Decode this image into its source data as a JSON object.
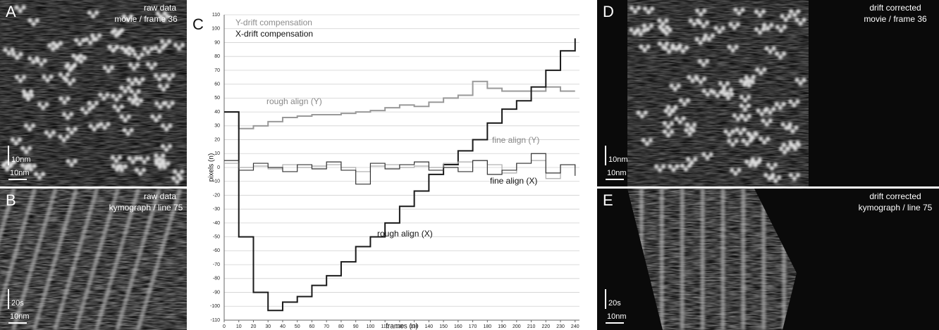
{
  "panels": [
    {
      "label": "A",
      "caption": [
        "raw data",
        "movie / frame 36"
      ],
      "scale_bars": [
        "10nm",
        "10nm"
      ]
    },
    {
      "label": "B",
      "caption": [
        "raw data",
        "kymograph / line 75"
      ],
      "scale_bars": [
        "20s",
        "10nm"
      ]
    },
    {
      "label": "D",
      "caption": [
        "drift corrected",
        "movie / frame 36"
      ],
      "scale_bars": [
        "10nm",
        "10nm"
      ]
    },
    {
      "label": "E",
      "caption": [
        "drift corrected",
        "kymograph / line 75"
      ],
      "scale_bars": [
        "20s",
        "10nm"
      ]
    }
  ],
  "chart_data": {
    "type": "line",
    "panel_label": "C",
    "legend": [
      {
        "label": "Y-drift compensation",
        "color": "#8c8c8c"
      },
      {
        "label": "X-drift compensation",
        "color": "#111111"
      }
    ],
    "x_label": "frames (n)",
    "y_label": "pixels (n)",
    "x": [
      0,
      10,
      20,
      30,
      40,
      50,
      60,
      70,
      80,
      90,
      100,
      110,
      120,
      130,
      140,
      150,
      160,
      170,
      180,
      190,
      200,
      210,
      220,
      230,
      240
    ],
    "series": [
      {
        "name": "rough align (Y)",
        "color": "#999999",
        "values": [
          40,
          28,
          30,
          33,
          36,
          37,
          38,
          38,
          39,
          40,
          41,
          43,
          45,
          44,
          47,
          50,
          52,
          62,
          57,
          55,
          55,
          55,
          58,
          55,
          55
        ]
      },
      {
        "name": "rough align (X)",
        "color": "#1a1a1a",
        "values": [
          40,
          -50,
          -90,
          -103,
          -97,
          -93,
          -85,
          -78,
          -68,
          -57,
          -50,
          -40,
          -28,
          -17,
          -5,
          2,
          12,
          20,
          32,
          42,
          48,
          58,
          70,
          84,
          93
        ]
      },
      {
        "name": "fine align (Y)",
        "color": "#aaaaaa",
        "values": [
          3,
          0,
          1,
          -1,
          2,
          0,
          1,
          2,
          0,
          -3,
          1,
          2,
          0,
          1,
          0,
          3,
          4,
          5,
          2,
          -4,
          3,
          5,
          -8,
          2,
          0
        ]
      },
      {
        "name": "fine align (X)",
        "color": "#333333",
        "values": [
          5,
          -2,
          3,
          0,
          -3,
          2,
          -1,
          4,
          -2,
          -12,
          3,
          -1,
          2,
          4,
          -2,
          0,
          -3,
          5,
          -5,
          -2,
          3,
          10,
          -4,
          2,
          -6
        ]
      }
    ],
    "xlim": [
      0,
      243
    ],
    "ylim": [
      -110,
      110
    ],
    "xticks": [
      0,
      10,
      20,
      30,
      40,
      50,
      60,
      70,
      80,
      90,
      100,
      110,
      120,
      130,
      140,
      150,
      160,
      170,
      180,
      190,
      200,
      210,
      220,
      230,
      240
    ],
    "yticks": [
      -110,
      -100,
      -90,
      -80,
      -70,
      -60,
      -50,
      -40,
      -30,
      -20,
      -10,
      0,
      10,
      20,
      30,
      40,
      50,
      60,
      70,
      80,
      90,
      100,
      110
    ],
    "grid": true
  }
}
